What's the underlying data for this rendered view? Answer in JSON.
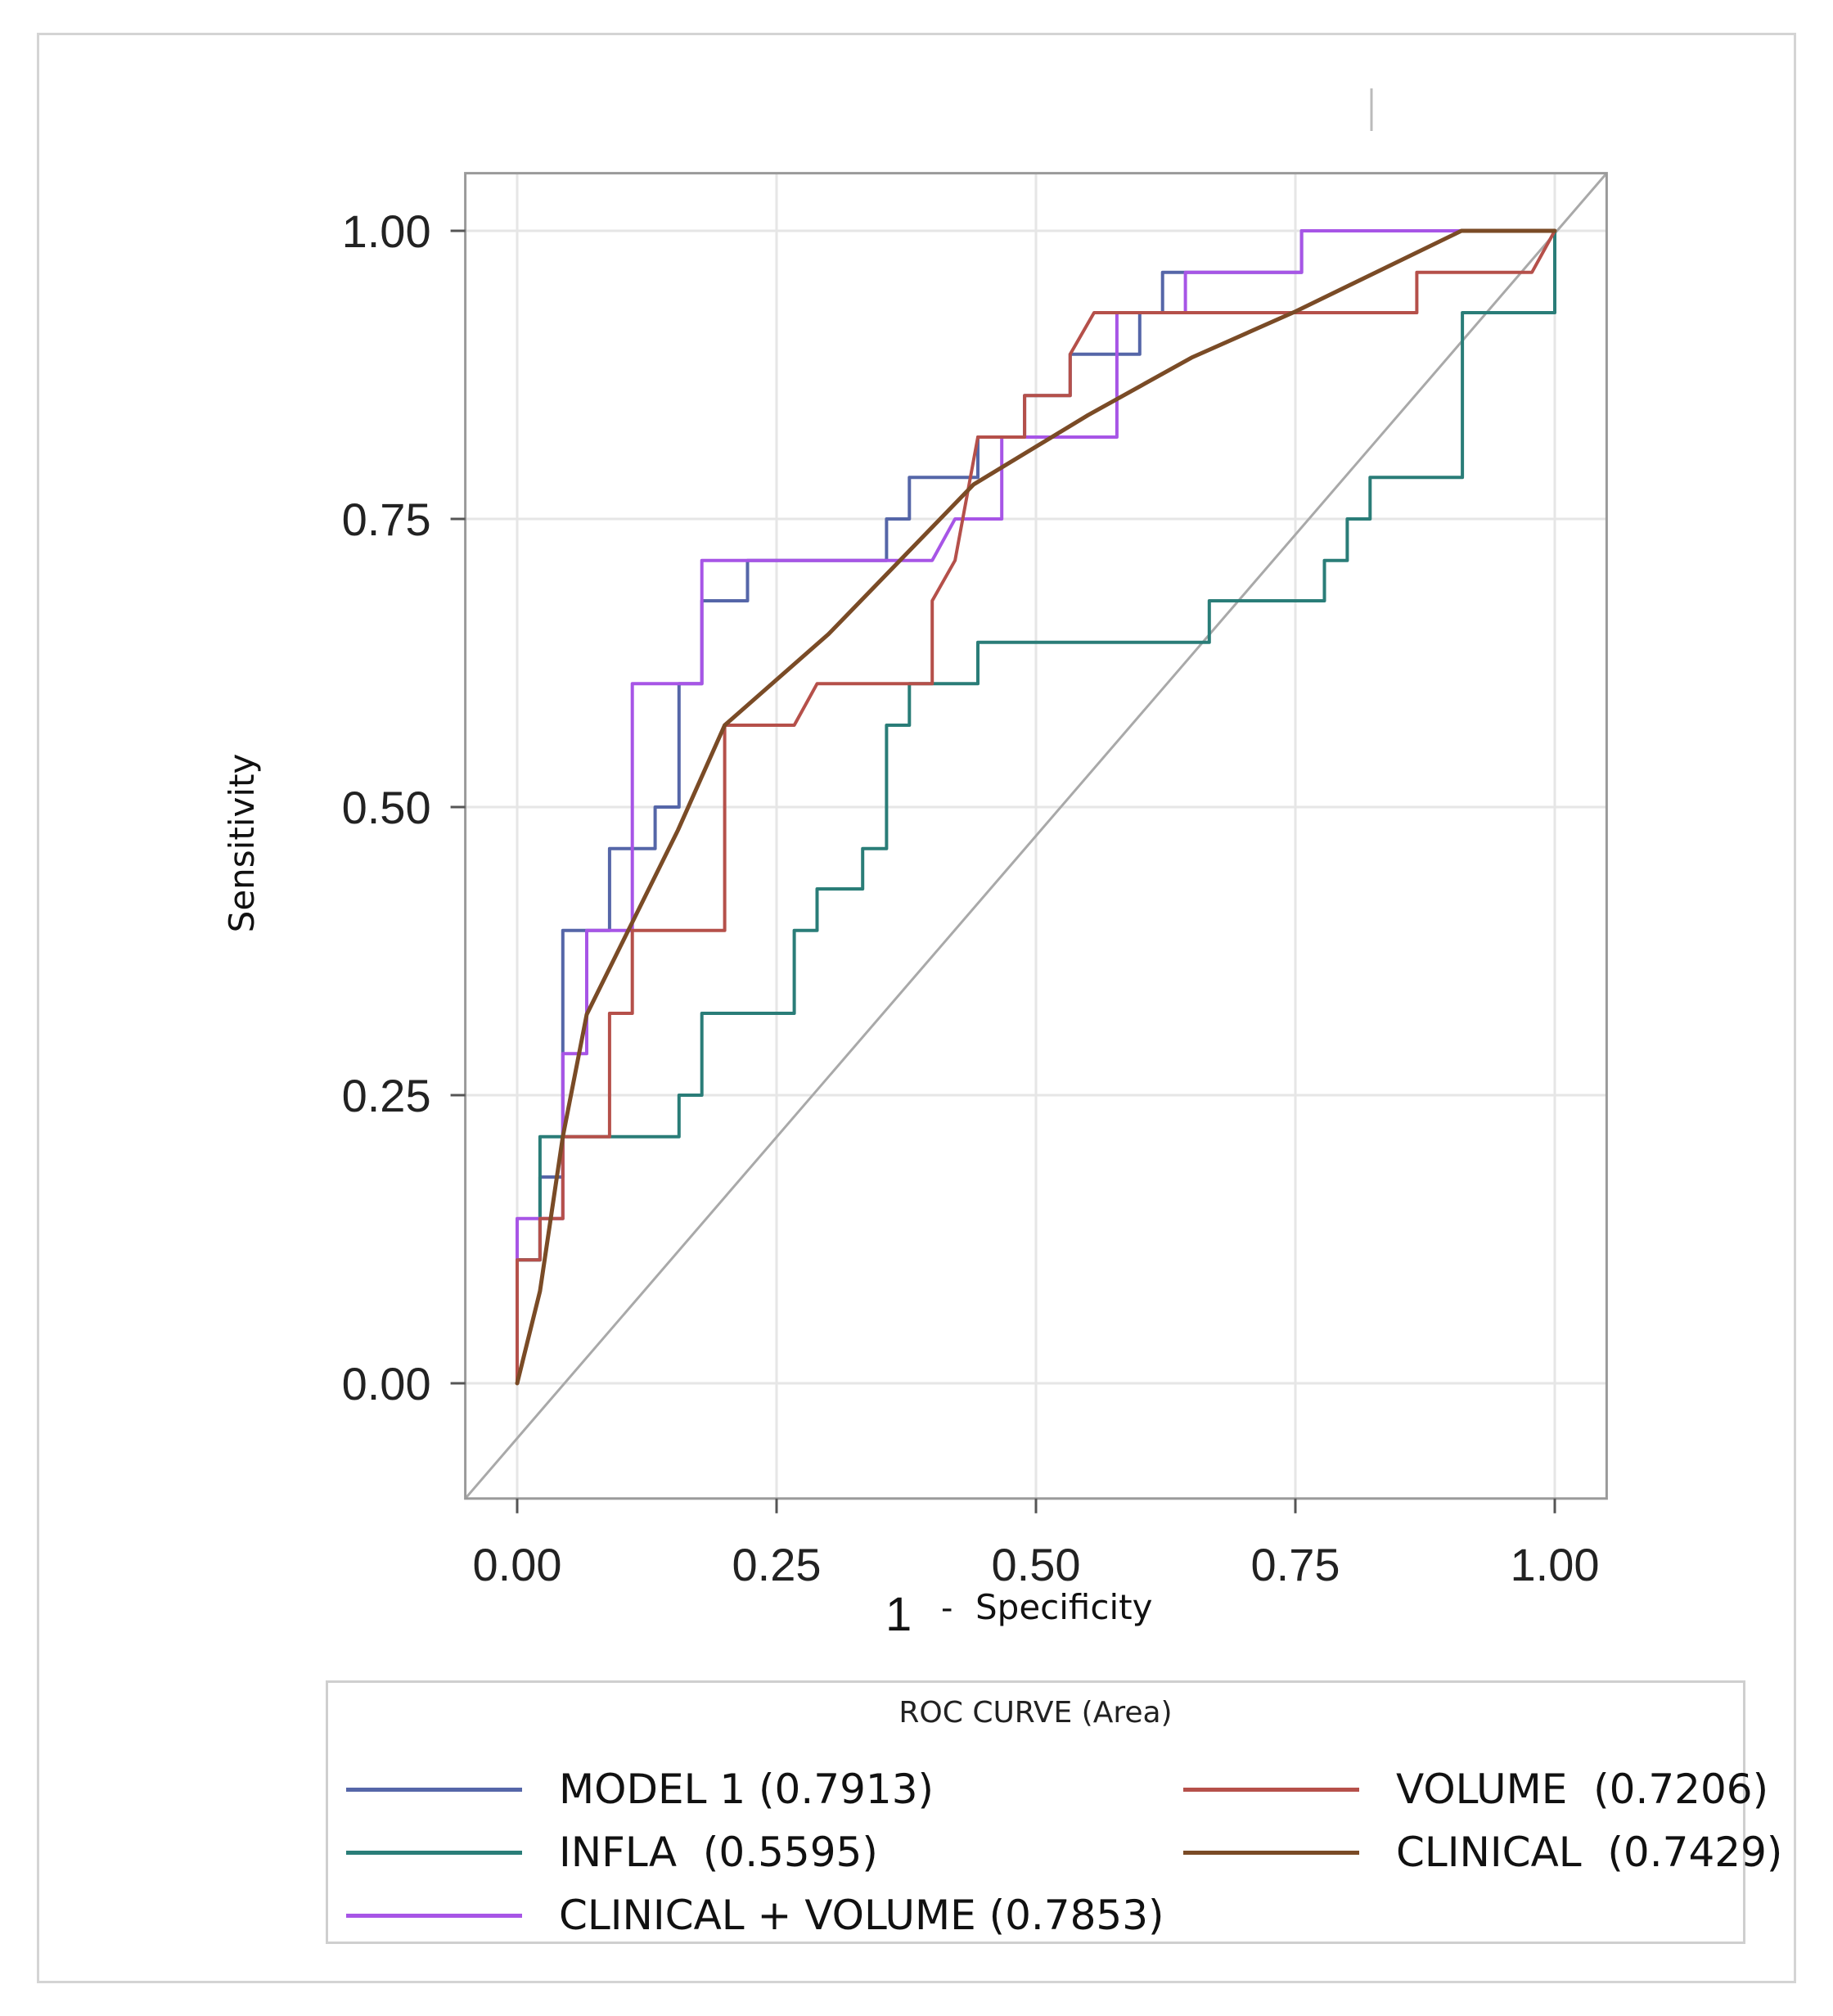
{
  "chart_data": {
    "type": "line",
    "title": "",
    "xlabel": "1 - Specificity",
    "xlabel_parts": {
      "number": "1",
      "dash": "-",
      "word": "Specificity"
    },
    "ylabel": "Sensitivity",
    "xlim": [
      -0.05,
      1.05
    ],
    "ylim": [
      -0.1,
      1.05
    ],
    "xticks": [
      0,
      0.25,
      0.5,
      0.75,
      1
    ],
    "yticks": [
      0,
      0.25,
      0.5,
      0.75,
      1
    ],
    "xtick_labels": [
      "0.00",
      "0.25",
      "0.50",
      "0.75",
      "1.00"
    ],
    "ytick_labels": [
      "0.00",
      "0.25",
      "0.50",
      "0.75",
      "1.00"
    ],
    "grid": true,
    "reference_line": {
      "x": [
        0,
        1
      ],
      "y": [
        0,
        1
      ],
      "color": "#a9a9a9"
    },
    "legend": {
      "title": "ROC CURVE (Area)",
      "position": "bottom"
    },
    "series": [
      {
        "name": "MODEL 1",
        "label": "MODEL 1 (0.7913)",
        "auc": 0.7913,
        "color": "#5566a8",
        "step": true,
        "points": [
          [
            0,
            0
          ],
          [
            0,
            0.107
          ],
          [
            0.022,
            0.107
          ],
          [
            0.022,
            0.179
          ],
          [
            0.044,
            0.179
          ],
          [
            0.044,
            0.393
          ],
          [
            0.089,
            0.393
          ],
          [
            0.089,
            0.464
          ],
          [
            0.133,
            0.464
          ],
          [
            0.133,
            0.5
          ],
          [
            0.156,
            0.5
          ],
          [
            0.156,
            0.607
          ],
          [
            0.178,
            0.607
          ],
          [
            0.178,
            0.679
          ],
          [
            0.222,
            0.679
          ],
          [
            0.222,
            0.714
          ],
          [
            0.356,
            0.714
          ],
          [
            0.356,
            0.75
          ],
          [
            0.378,
            0.75
          ],
          [
            0.378,
            0.786
          ],
          [
            0.444,
            0.786
          ],
          [
            0.444,
            0.821
          ],
          [
            0.489,
            0.821
          ],
          [
            0.489,
            0.857
          ],
          [
            0.533,
            0.857
          ],
          [
            0.533,
            0.893
          ],
          [
            0.6,
            0.893
          ],
          [
            0.6,
            0.929
          ],
          [
            0.622,
            0.929
          ],
          [
            0.622,
            0.964
          ],
          [
            0.756,
            0.964
          ],
          [
            0.756,
            1
          ],
          [
            1,
            1
          ]
        ]
      },
      {
        "name": "INFLA",
        "label": "INFLA  (0.5595)",
        "auc": 0.5595,
        "color": "#2a7d78",
        "step": true,
        "points": [
          [
            0,
            0
          ],
          [
            0,
            0.107
          ],
          [
            0.022,
            0.107
          ],
          [
            0.022,
            0.214
          ],
          [
            0.156,
            0.214
          ],
          [
            0.156,
            0.25
          ],
          [
            0.178,
            0.25
          ],
          [
            0.178,
            0.321
          ],
          [
            0.267,
            0.321
          ],
          [
            0.267,
            0.393
          ],
          [
            0.289,
            0.393
          ],
          [
            0.289,
            0.429
          ],
          [
            0.333,
            0.429
          ],
          [
            0.333,
            0.464
          ],
          [
            0.356,
            0.464
          ],
          [
            0.356,
            0.571
          ],
          [
            0.378,
            0.571
          ],
          [
            0.378,
            0.607
          ],
          [
            0.444,
            0.607
          ],
          [
            0.444,
            0.643
          ],
          [
            0.667,
            0.643
          ],
          [
            0.667,
            0.679
          ],
          [
            0.778,
            0.679
          ],
          [
            0.778,
            0.714
          ],
          [
            0.8,
            0.714
          ],
          [
            0.8,
            0.75
          ],
          [
            0.822,
            0.75
          ],
          [
            0.822,
            0.786
          ],
          [
            0.911,
            0.786
          ],
          [
            0.911,
            0.929
          ],
          [
            1,
            0.929
          ],
          [
            1,
            1
          ]
        ]
      },
      {
        "name": "CLINICAL + VOLUME",
        "label": "CLINICAL + VOLUME (0.7853)",
        "auc": 0.7853,
        "color": "#a755e6",
        "step": true,
        "points": [
          [
            0,
            0
          ],
          [
            0,
            0.143
          ],
          [
            0.044,
            0.143
          ],
          [
            0.044,
            0.286
          ],
          [
            0.067,
            0.286
          ],
          [
            0.067,
            0.393
          ],
          [
            0.111,
            0.393
          ],
          [
            0.111,
            0.607
          ],
          [
            0.178,
            0.607
          ],
          [
            0.178,
            0.714
          ],
          [
            0.4,
            0.714
          ],
          [
            0.422,
            0.75
          ],
          [
            0.467,
            0.75
          ],
          [
            0.467,
            0.821
          ],
          [
            0.578,
            0.821
          ],
          [
            0.578,
            0.929
          ],
          [
            0.644,
            0.929
          ],
          [
            0.644,
            0.964
          ],
          [
            0.756,
            0.964
          ],
          [
            0.756,
            1
          ],
          [
            1,
            1
          ]
        ]
      },
      {
        "name": "VOLUME",
        "label": "VOLUME  (0.7206)",
        "auc": 0.7206,
        "color": "#b5504a",
        "step": true,
        "points": [
          [
            0,
            0
          ],
          [
            0,
            0.107
          ],
          [
            0.022,
            0.107
          ],
          [
            0.022,
            0.143
          ],
          [
            0.044,
            0.143
          ],
          [
            0.044,
            0.214
          ],
          [
            0.089,
            0.214
          ],
          [
            0.089,
            0.321
          ],
          [
            0.111,
            0.321
          ],
          [
            0.111,
            0.393
          ],
          [
            0.2,
            0.393
          ],
          [
            0.2,
            0.571
          ],
          [
            0.267,
            0.571
          ],
          [
            0.289,
            0.607
          ],
          [
            0.4,
            0.607
          ],
          [
            0.4,
            0.679
          ],
          [
            0.422,
            0.714
          ],
          [
            0.444,
            0.821
          ],
          [
            0.489,
            0.821
          ],
          [
            0.489,
            0.857
          ],
          [
            0.533,
            0.857
          ],
          [
            0.533,
            0.893
          ],
          [
            0.556,
            0.929
          ],
          [
            0.867,
            0.929
          ],
          [
            0.867,
            0.964
          ],
          [
            0.978,
            0.964
          ],
          [
            1,
            1
          ]
        ]
      },
      {
        "name": "CLINICAL",
        "label": "CLINICAL  (0.7429)",
        "auc": 0.7429,
        "color": "#7a4b26",
        "step": false,
        "points": [
          [
            0,
            0
          ],
          [
            0.022,
            0.08
          ],
          [
            0.044,
            0.214
          ],
          [
            0.067,
            0.32
          ],
          [
            0.111,
            0.4
          ],
          [
            0.155,
            0.48
          ],
          [
            0.2,
            0.571
          ],
          [
            0.3,
            0.65
          ],
          [
            0.44,
            0.78
          ],
          [
            0.55,
            0.84
          ],
          [
            0.65,
            0.89
          ],
          [
            0.75,
            0.93
          ],
          [
            0.91,
            1
          ],
          [
            1,
            1
          ]
        ]
      }
    ]
  }
}
